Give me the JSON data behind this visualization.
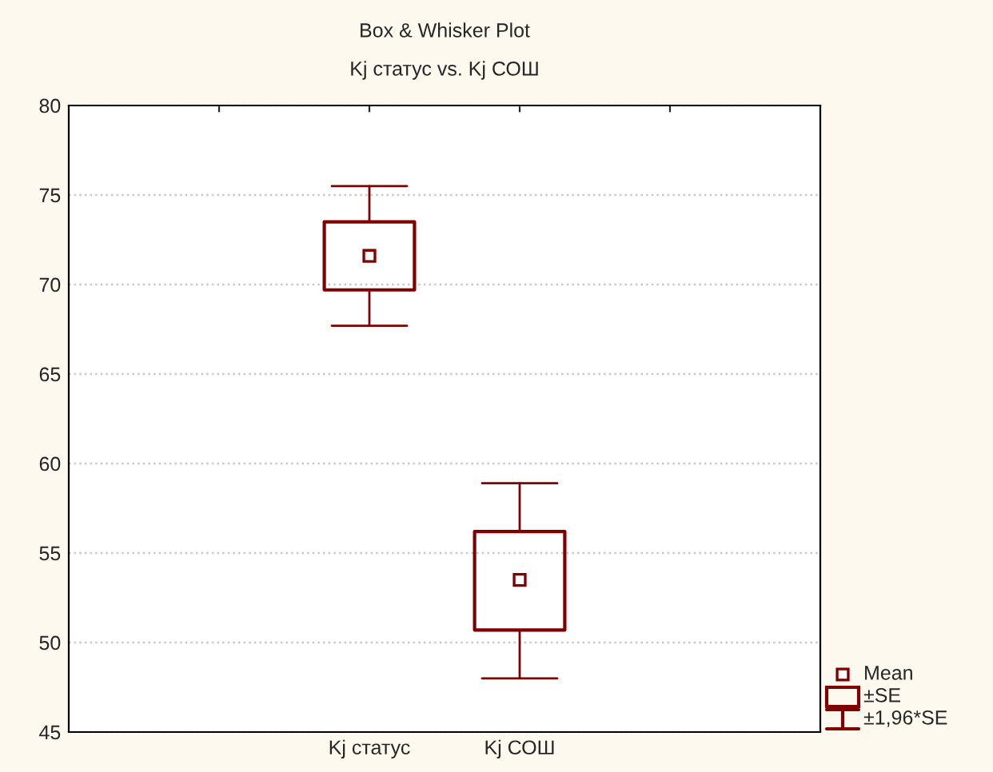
{
  "chart_data": {
    "type": "box",
    "title": "Box & Whisker Plot",
    "subtitle": "Kj статус vs. Kj СОШ",
    "categories": [
      "Kj статус",
      "Kj СОШ"
    ],
    "color": "#800000",
    "boxes": [
      {
        "low": 67.7,
        "q1": 69.7,
        "q3": 73.5,
        "high": 75.5,
        "mean": 71.6
      },
      {
        "low": 48.0,
        "q1": 50.7,
        "q3": 56.2,
        "high": 58.9,
        "mean": 53.5
      }
    ],
    "ylim": [
      45,
      80
    ],
    "yticks": [
      45,
      50,
      55,
      60,
      65,
      70,
      75,
      80
    ],
    "grid": "y",
    "marker": "square",
    "annotations": [
      "Mean",
      "±SE",
      "±1,96*SE"
    ]
  }
}
